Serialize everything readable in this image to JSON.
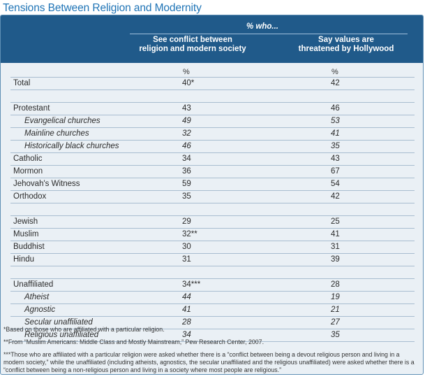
{
  "title": "Tensions Between Religion and Modernity",
  "header": {
    "who": "% who...",
    "col1_line1": "See conflict between",
    "col1_line2": "religion and modern society",
    "col2_line1": "Say values are",
    "col2_line2": "threatened by Hollywood"
  },
  "units": {
    "col1": "%",
    "col2": "%"
  },
  "groups": [
    {
      "rows": [
        {
          "label": "Total",
          "v1": "40*",
          "v2": "42",
          "sub": false
        }
      ]
    },
    {
      "rows": [
        {
          "label": "Protestant",
          "v1": "43",
          "v2": "46",
          "sub": false
        },
        {
          "label": "Evangelical churches",
          "v1": "49",
          "v2": "53",
          "sub": true
        },
        {
          "label": "Mainline churches",
          "v1": "32",
          "v2": "41",
          "sub": true
        },
        {
          "label": "Historically black churches",
          "v1": "46",
          "v2": "35",
          "sub": true
        },
        {
          "label": "Catholic",
          "v1": "34",
          "v2": "43",
          "sub": false
        },
        {
          "label": "Mormon",
          "v1": "36",
          "v2": "67",
          "sub": false
        },
        {
          "label": "Jehovah's Witness",
          "v1": "59",
          "v2": "54",
          "sub": false
        },
        {
          "label": "Orthodox",
          "v1": "35",
          "v2": "42",
          "sub": false
        }
      ]
    },
    {
      "rows": [
        {
          "label": "Jewish",
          "v1": "29",
          "v2": "25",
          "sub": false
        },
        {
          "label": "Muslim",
          "v1": "32**",
          "v2": "41",
          "sub": false
        },
        {
          "label": "Buddhist",
          "v1": "30",
          "v2": "31",
          "sub": false
        },
        {
          "label": "Hindu",
          "v1": "31",
          "v2": "39",
          "sub": false
        }
      ]
    },
    {
      "rows": [
        {
          "label": "Unaffiliated",
          "v1": "34***",
          "v2": "28",
          "sub": false
        },
        {
          "label": "Atheist",
          "v1": "44",
          "v2": "19",
          "sub": true
        },
        {
          "label": "Agnostic",
          "v1": "41",
          "v2": "21",
          "sub": true
        },
        {
          "label": "Secular unaffiliated",
          "v1": "28",
          "v2": "27",
          "sub": true
        },
        {
          "label": "Religious unaffiliated",
          "v1": "34",
          "v2": "35",
          "sub": true
        }
      ]
    }
  ],
  "notes": {
    "n1": "*Based on those who are affiliated with a particular religion.",
    "n2": "**From “Muslim Americans: Middle Class and Mostly Mainstream,” Pew Research Center, 2007.",
    "n3": "***Those who are affiliated with a particular religion were asked whether there is a “conflict between being a devout religious person and living in a modern society,” while the unaffiliated (including atheists, agnostics, the secular unaffiliated and the religious unaffiliated) were asked whether there is a “conflict between being a non-religious person and living in a society where most people are religious.”"
  },
  "colors": {
    "title": "#1f74b6",
    "header_bg": "#205a8a",
    "panel_bg": "#eaf0f5",
    "rule": "#a8bdd0"
  }
}
